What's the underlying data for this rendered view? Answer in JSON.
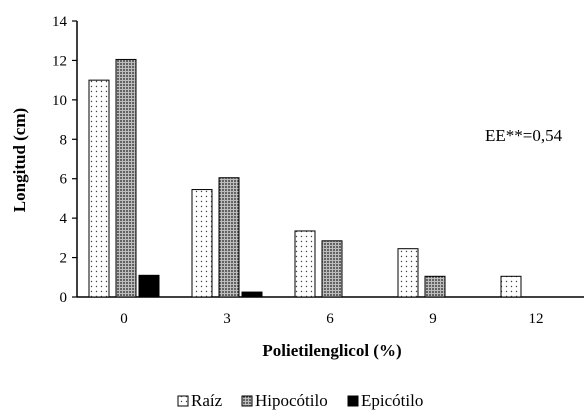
{
  "chart_data": {
    "type": "bar",
    "title": "",
    "xlabel": "Polietilenglicol (%)",
    "ylabel": "Longitud (cm)",
    "categories": [
      "0",
      "3",
      "6",
      "9",
      "12"
    ],
    "ylim": [
      0,
      14
    ],
    "yticks": [
      0,
      2,
      4,
      6,
      8,
      10,
      12,
      14
    ],
    "grid": false,
    "legend_position": "bottom",
    "annotation": "EE**=0,54",
    "series": [
      {
        "name": "Raíz",
        "values": [
          11.0,
          5.45,
          3.35,
          2.45,
          1.05
        ],
        "pattern": "dotted-light"
      },
      {
        "name": "Hipocótilo",
        "values": [
          12.05,
          6.05,
          2.85,
          1.05,
          0
        ],
        "pattern": "dotted-dense"
      },
      {
        "name": "Epicótilo",
        "values": [
          1.1,
          0.25,
          0,
          0,
          0
        ],
        "pattern": "black"
      }
    ]
  }
}
